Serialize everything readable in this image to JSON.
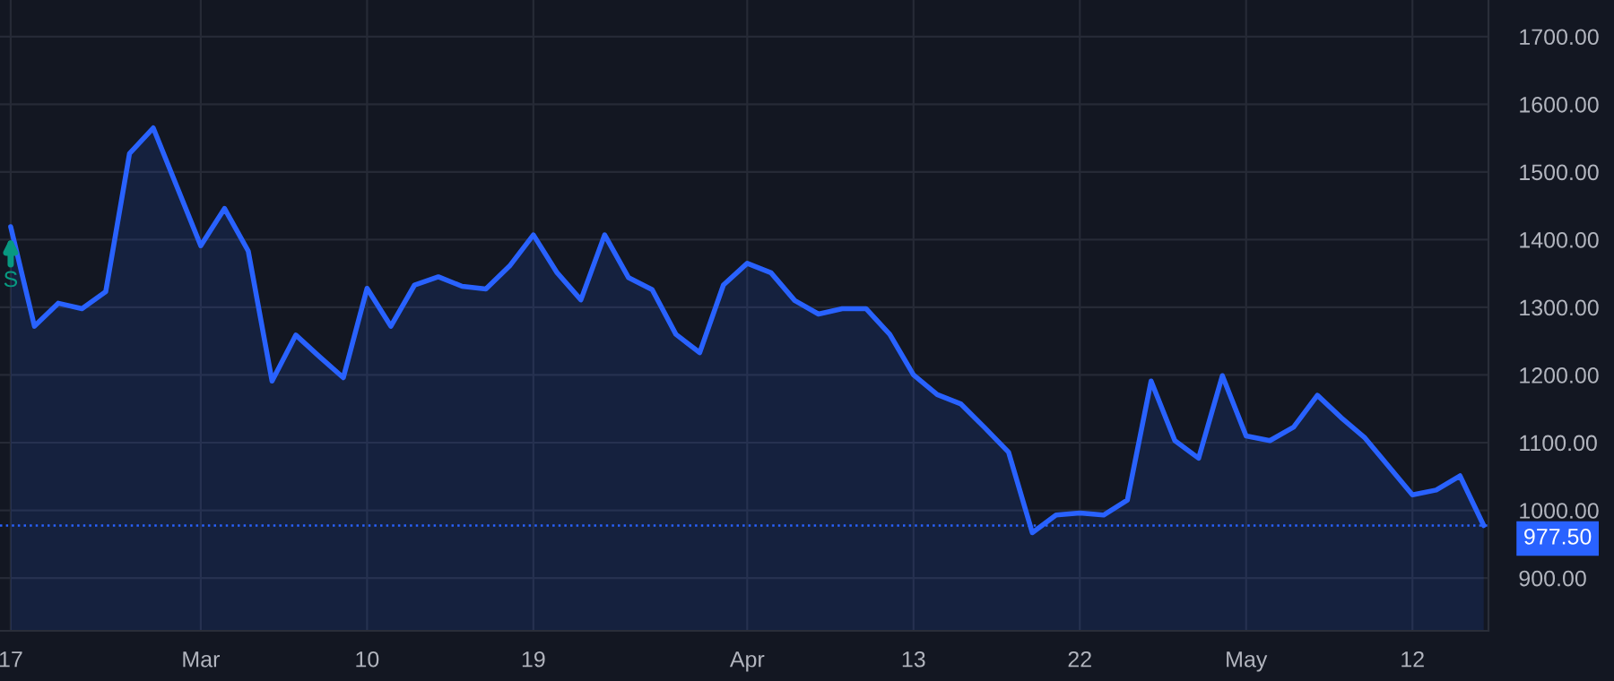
{
  "chart_data": {
    "type": "area",
    "categories": [
      "17",
      null,
      null,
      null,
      null,
      null,
      null,
      null,
      "Mar",
      null,
      null,
      null,
      null,
      null,
      null,
      "10",
      null,
      null,
      null,
      null,
      null,
      null,
      "19",
      null,
      null,
      null,
      null,
      null,
      null,
      null,
      null,
      "Apr",
      null,
      null,
      null,
      null,
      null,
      null,
      "13",
      null,
      null,
      null,
      null,
      null,
      null,
      "22",
      null,
      null,
      null,
      null,
      null,
      null,
      "May",
      null,
      null,
      null,
      null,
      null,
      null,
      "12",
      null,
      null,
      null
    ],
    "series": [
      {
        "color": "#2962ff",
        "values": [
          1419,
          1272,
          1306,
          1298,
          1323,
          1527,
          1565,
          1478,
          1391,
          1446,
          1383,
          1191,
          1259,
          1227,
          1196,
          1328,
          1272,
          1333,
          1345,
          1331,
          1327,
          1361,
          1407,
          1351,
          1311,
          1407,
          1344,
          1326,
          1260,
          1233,
          1333,
          1365,
          1351,
          1310,
          1290,
          1298,
          1298,
          1260,
          1200,
          1171,
          1157,
          1122,
          1086,
          967,
          993,
          996,
          993,
          1015,
          1191,
          1103,
          1077,
          1199,
          1110,
          1103,
          1123,
          1170,
          1137,
          1107,
          1065,
          1023,
          1030,
          1051,
          977.5
        ]
      }
    ],
    "ylim": [
      822,
      1754
    ],
    "yticks": [
      {
        "value": 900,
        "label": "900.00"
      },
      {
        "value": 1000,
        "label": "1000.00"
      },
      {
        "value": 1100,
        "label": "1100.00"
      },
      {
        "value": 1200,
        "label": "1200.00"
      },
      {
        "value": 1300,
        "label": "1300.00"
      },
      {
        "value": 1400,
        "label": "1400.00"
      },
      {
        "value": 1500,
        "label": "1500.00"
      },
      {
        "value": 1600,
        "label": "1600.00"
      },
      {
        "value": 1700,
        "label": "1700.00"
      }
    ],
    "ref_lines": [
      {
        "axis": "y",
        "value": 977.5,
        "label": "977.50",
        "color": "#2962ff",
        "line_style": "dotted"
      }
    ],
    "annotations": [
      {
        "text": "S",
        "x": "17",
        "y": 1419
      }
    ],
    "grid": true,
    "marker": "none",
    "line_style": "solid"
  }
}
